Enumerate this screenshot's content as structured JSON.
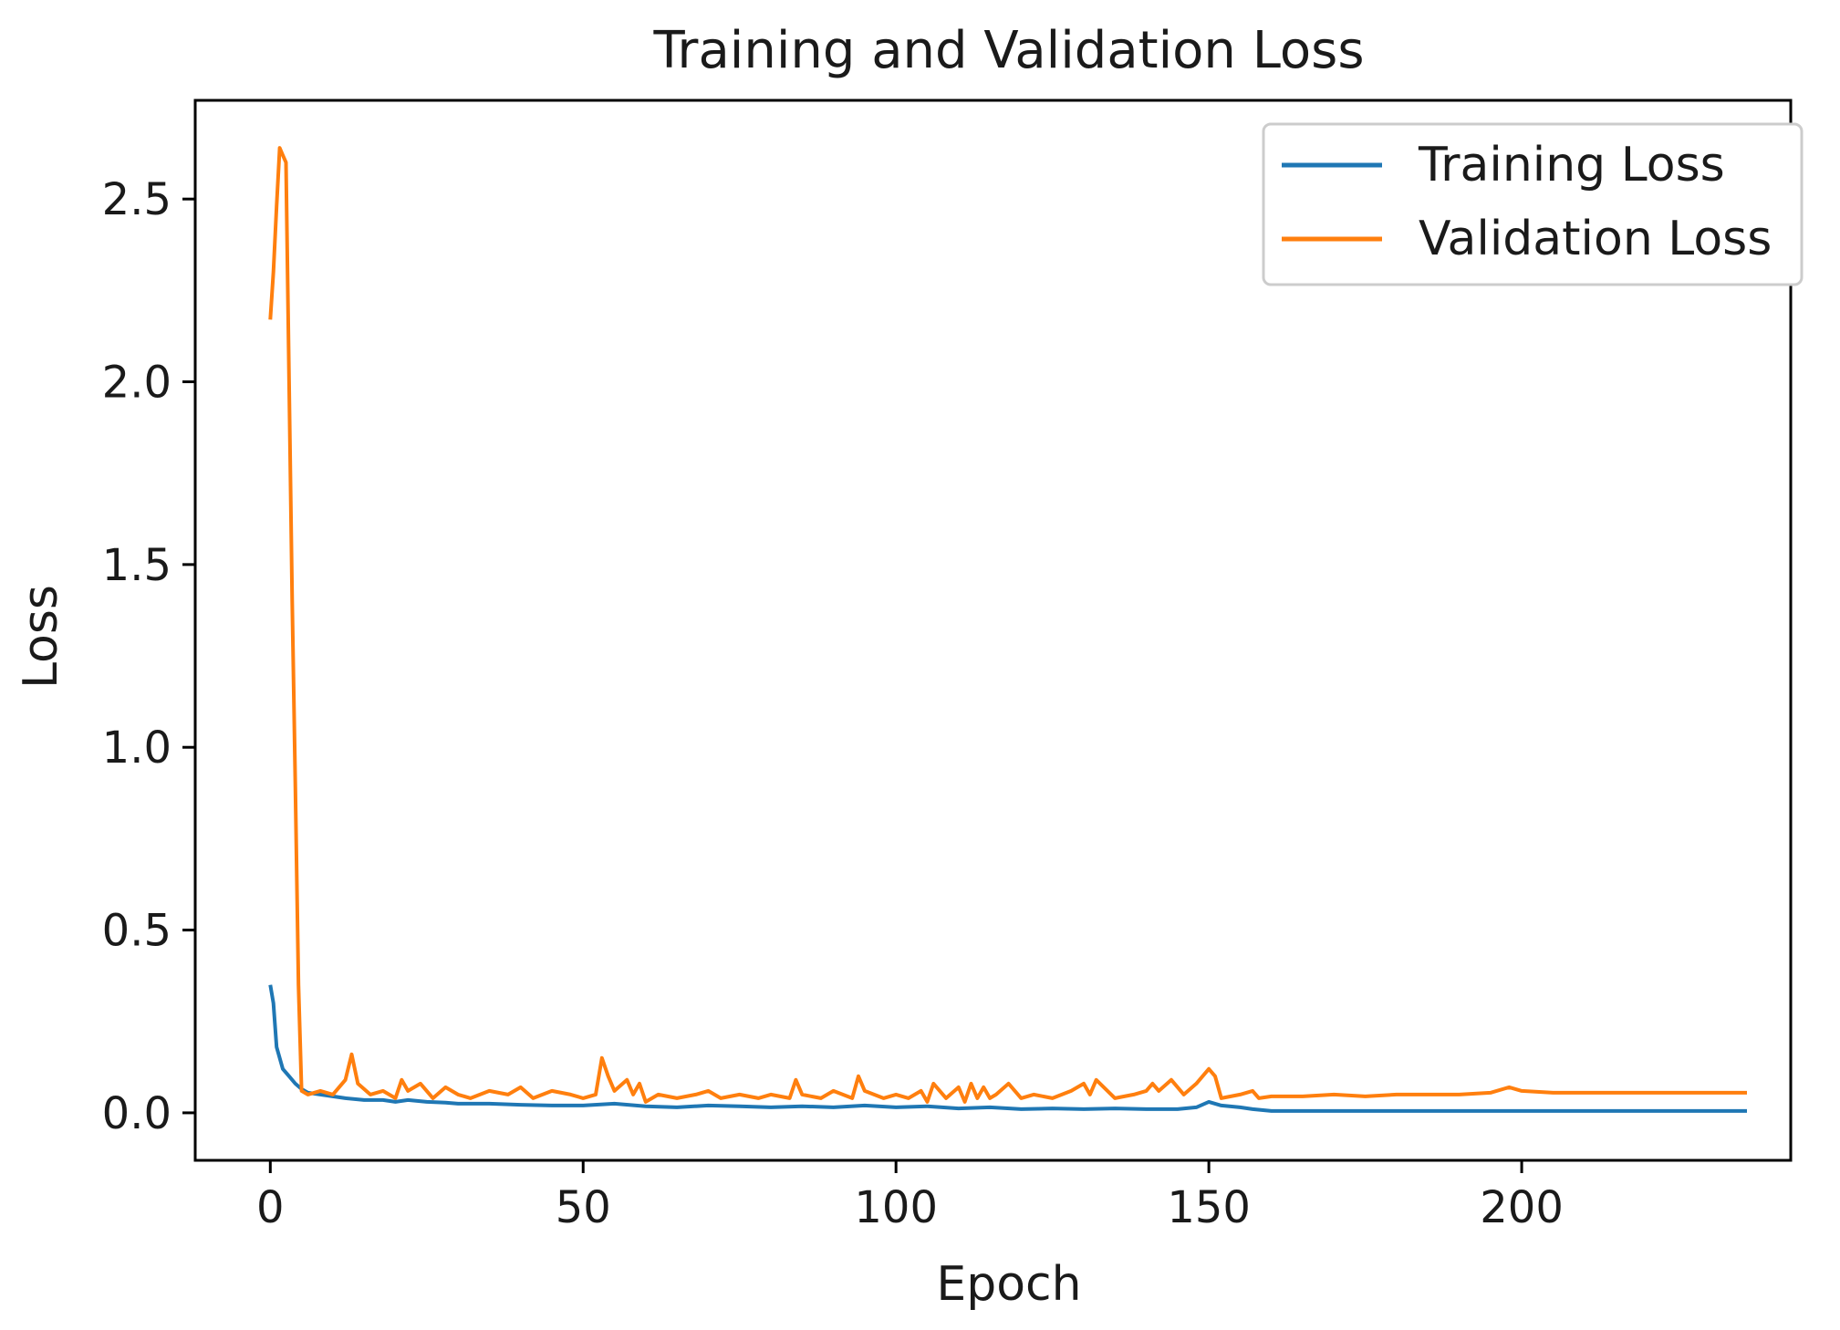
{
  "chart_data": {
    "type": "line",
    "title": "Training and Validation Loss",
    "xlabel": "Epoch",
    "ylabel": "Loss",
    "xlim": [
      -12,
      243
    ],
    "ylim": [
      -0.13,
      2.77
    ],
    "xticks": [
      0,
      50,
      100,
      150,
      200
    ],
    "yticks": [
      0.0,
      0.5,
      1.0,
      1.5,
      2.0,
      2.5
    ],
    "xtick_labels": [
      "0",
      "50",
      "100",
      "150",
      "200"
    ],
    "ytick_labels": [
      "0.0",
      "0.5",
      "1.0",
      "1.5",
      "2.0",
      "2.5"
    ],
    "grid": false,
    "legend": {
      "position": "top-right"
    },
    "series": [
      {
        "name": "Training Loss",
        "color": "#1f77b4",
        "x": [
          0,
          0.5,
          1,
          2,
          3,
          4,
          5,
          6,
          8,
          10,
          12,
          15,
          18,
          20,
          22,
          25,
          28,
          30,
          35,
          40,
          45,
          50,
          55,
          60,
          65,
          70,
          75,
          80,
          85,
          90,
          95,
          100,
          105,
          110,
          115,
          120,
          125,
          130,
          135,
          140,
          145,
          148,
          150,
          152,
          155,
          157,
          160,
          170,
          180,
          190,
          200,
          210,
          220,
          230,
          236
        ],
        "y": [
          0.35,
          0.3,
          0.18,
          0.12,
          0.1,
          0.08,
          0.065,
          0.055,
          0.05,
          0.045,
          0.04,
          0.035,
          0.035,
          0.03,
          0.035,
          0.03,
          0.028,
          0.025,
          0.025,
          0.022,
          0.02,
          0.02,
          0.025,
          0.018,
          0.015,
          0.02,
          0.018,
          0.015,
          0.018,
          0.015,
          0.02,
          0.015,
          0.018,
          0.012,
          0.015,
          0.01,
          0.012,
          0.01,
          0.012,
          0.01,
          0.01,
          0.015,
          0.03,
          0.02,
          0.015,
          0.01,
          0.005,
          0.005,
          0.005,
          0.005,
          0.005,
          0.005,
          0.005,
          0.005,
          0.005
        ]
      },
      {
        "name": "Validation Loss",
        "color": "#ff7f0e",
        "x": [
          0,
          0.5,
          1,
          1.5,
          2,
          2.5,
          3,
          3.5,
          4,
          4.5,
          5,
          6,
          8,
          10,
          12,
          13,
          14,
          16,
          18,
          20,
          21,
          22,
          24,
          26,
          28,
          30,
          32,
          35,
          38,
          40,
          42,
          45,
          48,
          50,
          52,
          53,
          54,
          55,
          57,
          58,
          59,
          60,
          62,
          65,
          68,
          70,
          72,
          75,
          78,
          80,
          83,
          84,
          85,
          88,
          90,
          93,
          94,
          95,
          98,
          100,
          102,
          104,
          105,
          106,
          108,
          110,
          111,
          112,
          113,
          114,
          115,
          116,
          118,
          120,
          122,
          125,
          128,
          130,
          131,
          132,
          135,
          138,
          140,
          141,
          142,
          144,
          146,
          148,
          150,
          151,
          152,
          155,
          157,
          158,
          160,
          165,
          170,
          175,
          180,
          185,
          190,
          195,
          198,
          200,
          205,
          210,
          215,
          220,
          225,
          230,
          236
        ],
        "y": [
          2.17,
          2.3,
          2.48,
          2.64,
          2.62,
          2.6,
          2.0,
          1.4,
          0.9,
          0.35,
          0.06,
          0.05,
          0.06,
          0.05,
          0.09,
          0.16,
          0.08,
          0.05,
          0.06,
          0.04,
          0.09,
          0.06,
          0.08,
          0.04,
          0.07,
          0.05,
          0.04,
          0.06,
          0.05,
          0.07,
          0.04,
          0.06,
          0.05,
          0.04,
          0.05,
          0.15,
          0.1,
          0.06,
          0.09,
          0.05,
          0.08,
          0.03,
          0.05,
          0.04,
          0.05,
          0.06,
          0.04,
          0.05,
          0.04,
          0.05,
          0.04,
          0.09,
          0.05,
          0.04,
          0.06,
          0.04,
          0.1,
          0.06,
          0.04,
          0.05,
          0.04,
          0.06,
          0.03,
          0.08,
          0.04,
          0.07,
          0.03,
          0.08,
          0.04,
          0.07,
          0.04,
          0.05,
          0.08,
          0.04,
          0.05,
          0.04,
          0.06,
          0.08,
          0.05,
          0.09,
          0.04,
          0.05,
          0.06,
          0.08,
          0.06,
          0.09,
          0.05,
          0.08,
          0.12,
          0.1,
          0.04,
          0.05,
          0.06,
          0.04,
          0.045,
          0.045,
          0.05,
          0.045,
          0.05,
          0.05,
          0.05,
          0.055,
          0.07,
          0.06,
          0.055,
          0.055,
          0.055,
          0.055,
          0.055,
          0.055,
          0.055
        ]
      }
    ]
  }
}
